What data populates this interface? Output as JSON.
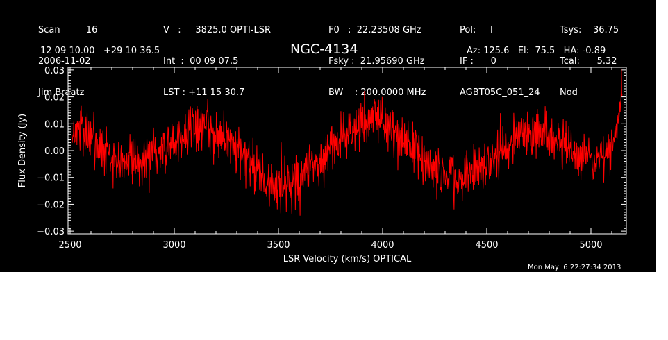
{
  "header": {
    "col1": [
      "Scan         16",
      "2006-11-02",
      "Jim Braatz"
    ],
    "col2": [
      "V   :     3825.0 OPTI-LSR",
      "Int  :  00 09 07.5",
      "LST : +11 15 30.7"
    ],
    "col3": [
      "F0   :  22.23508 GHz",
      "Fsky :  21.95690 GHz",
      "BW    : 200.0000 MHz"
    ],
    "col4": [
      "Pol:     I",
      "IF :      0",
      "AGBT05C_051_24"
    ],
    "col5": [
      "Tsys:    36.75",
      "Tcal:      5.32",
      "Nod"
    ],
    "coords": "12 09 10.00   +29 10 36.5",
    "source": "NGC-4134",
    "pointing": "Az: 125.6   El:  75.5   HA: -0.89"
  },
  "timestamp": "Mon May  6 22:27:34 2013",
  "colors": {
    "background": "#000000",
    "foreground": "#ffffff",
    "trace": "#ff0000"
  },
  "chart_data": {
    "type": "line",
    "xlabel": "LSR Velocity (km/s) OPTICAL",
    "ylabel": "Flux Density (Jy)",
    "xlim": [
      2490,
      5170
    ],
    "ylim": [
      -0.031,
      0.031
    ],
    "xticks": [
      2500,
      3000,
      3500,
      4000,
      4500,
      5000
    ],
    "xtick_labels": [
      "2500",
      "3000",
      "3500",
      "4000",
      "4500",
      "5000"
    ],
    "yticks": [
      -0.03,
      -0.02,
      -0.01,
      0.0,
      0.01,
      0.02,
      0.03
    ],
    "ytick_labels": [
      "−0.03",
      "−0.02",
      "−0.01",
      "0.00",
      "0.01",
      "0.02",
      "0.03"
    ],
    "noise_rms": 0.0045,
    "series": [
      {
        "x": [
          2510,
          2550,
          2600,
          2650,
          2700,
          2750,
          2800,
          2850,
          2900,
          2950,
          3000,
          3050,
          3100,
          3150,
          3200,
          3250,
          3300,
          3350,
          3400,
          3450,
          3500,
          3550,
          3600,
          3650,
          3700,
          3750,
          3800,
          3850,
          3900,
          3950,
          4000,
          4050,
          4100,
          4150,
          4200,
          4250,
          4300,
          4350,
          4400,
          4450,
          4500,
          4550,
          4600,
          4650,
          4700,
          4750,
          4800,
          4850,
          4900,
          4950,
          5000,
          5050,
          5080,
          5100,
          5120,
          5130,
          5140,
          5150
        ],
        "y": [
          0.006,
          0.009,
          0.004,
          0.001,
          -0.003,
          -0.004,
          -0.004,
          -0.003,
          -0.001,
          0.001,
          0.003,
          0.006,
          0.009,
          0.01,
          0.007,
          0.004,
          0.001,
          -0.003,
          -0.008,
          -0.012,
          -0.013,
          -0.012,
          -0.01,
          -0.007,
          -0.004,
          0.0,
          0.004,
          0.008,
          0.011,
          0.012,
          0.011,
          0.008,
          0.004,
          0.0,
          -0.004,
          -0.007,
          -0.009,
          -0.01,
          -0.009,
          -0.007,
          -0.004,
          -0.001,
          0.002,
          0.004,
          0.006,
          0.007,
          0.006,
          0.003,
          0.0,
          -0.002,
          -0.003,
          -0.002,
          0.0,
          0.002,
          0.005,
          0.01,
          0.018,
          0.026
        ]
      }
    ],
    "grid": false
  }
}
